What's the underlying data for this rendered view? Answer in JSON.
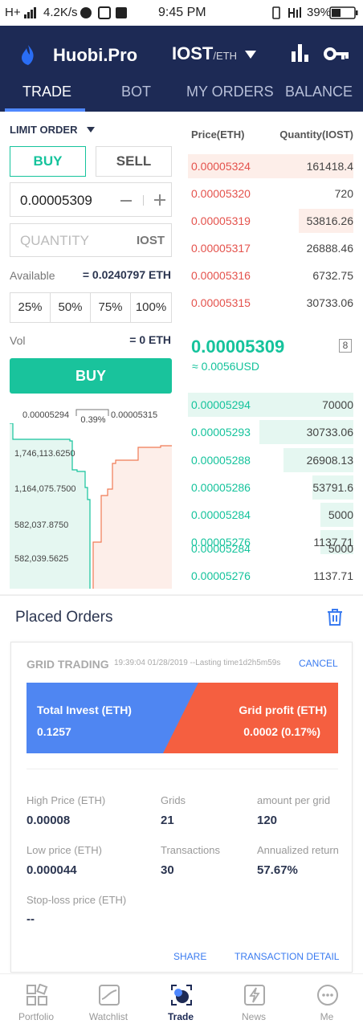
{
  "status": {
    "left": "H+",
    "speed": "4.2K/s",
    "time": "9:45 PM",
    "battery": "39%"
  },
  "header": {
    "brand": "Huobi.Pro",
    "pair": "IOST",
    "pair_quote": "/ETH"
  },
  "tabs": [
    "TRADE",
    "BOT",
    "MY ORDERS",
    "BALANCE"
  ],
  "order_form": {
    "order_type": "LIMIT ORDER",
    "buy_label": "BUY",
    "sell_label": "SELL",
    "price": "0.00005309",
    "quantity_placeholder": "QUANTITY",
    "quantity_unit": "IOST",
    "available_label": "Available",
    "available_value": "= 0.0240797 ETH",
    "percents": [
      "25%",
      "50%",
      "75%",
      "100%"
    ],
    "vol_label": "Vol",
    "vol_value": "= 0 ETH",
    "submit_label": "BUY"
  },
  "depth": {
    "left_price": "0.00005294",
    "spread": "0.39%",
    "right_price": "0.00005315",
    "levels": [
      "1,746,113.6250",
      "1,164,075.7500",
      "582,037.8750",
      "582,039.5625"
    ]
  },
  "orderbook": {
    "price_header": "Price(ETH)",
    "qty_header": "Quantity(IOST)",
    "asks": [
      {
        "price": "0.00005324",
        "qty": "161418.4",
        "depth": 1.0
      },
      {
        "price": "0.00005320",
        "qty": "720",
        "depth": 0.0
      },
      {
        "price": "0.00005319",
        "qty": "53816.26",
        "depth": 0.33
      },
      {
        "price": "0.00005317",
        "qty": "26888.46",
        "depth": 0.0
      },
      {
        "price": "0.00005316",
        "qty": "6732.75",
        "depth": 0.0
      },
      {
        "price": "0.00005315",
        "qty": "30733.06",
        "depth": 0.0
      }
    ],
    "last_price": "0.00005309",
    "last_usd": "≈ 0.0056USD",
    "precision_badge": "8",
    "bids": [
      {
        "price": "0.00005294",
        "qty": "70000",
        "depth": 1.0
      },
      {
        "price": "0.00005293",
        "qty": "30733.06",
        "depth": 0.57
      },
      {
        "price": "0.00005288",
        "qty": "26908.13",
        "depth": 0.42
      },
      {
        "price": "0.00005286",
        "qty": "53791.6",
        "depth": 0.25
      },
      {
        "price": "0.00005284",
        "qty": "5000",
        "depth": 0.2
      },
      {
        "price": "0.00005276",
        "qty": "1137.71",
        "depth": 0.2
      },
      {
        "price": "0.00005284",
        "qty": "5000",
        "depth": 0.0
      },
      {
        "price": "0.00005276",
        "qty": "1137.71",
        "depth": 0.0
      }
    ]
  },
  "placed_orders": {
    "title": "Placed Orders",
    "card": {
      "type": "GRID TRADING",
      "meta": "19:39:04 01/28/2019 --Lasting time1d2h5m59s",
      "cancel": "CANCEL",
      "invest_label": "Total Invest (ETH)",
      "invest_value": "0.1257",
      "profit_label": "Grid profit (ETH)",
      "profit_value": "0.0002 (0.17%)",
      "stats": [
        {
          "label": "High Price (ETH)",
          "value": "0.00008"
        },
        {
          "label": "Grids",
          "value": "21"
        },
        {
          "label": "amount per grid",
          "value": "120"
        },
        {
          "label": "Low price (ETH)",
          "value": "0.000044"
        },
        {
          "label": "Transactions",
          "value": "30"
        },
        {
          "label": "Annualized return",
          "value": "57.67%"
        },
        {
          "label": "Stop-loss price (ETH)",
          "value": "--"
        }
      ],
      "share": "SHARE",
      "detail": "TRANSACTION DETAIL"
    }
  },
  "nav": [
    "Portfolio",
    "Watchlist",
    "Trade",
    "News",
    "Me"
  ],
  "colors": {
    "header": "#1d2a55",
    "buy": "#15c39c",
    "sell": "#e4524c",
    "invest": "#4f86f2",
    "profit": "#f55f40"
  }
}
